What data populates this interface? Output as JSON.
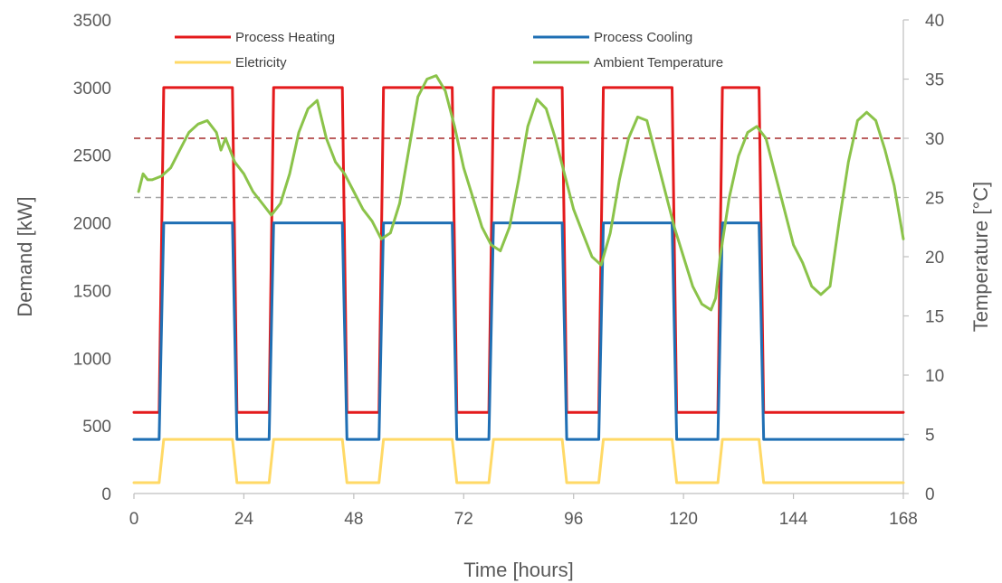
{
  "chart_data": {
    "type": "line",
    "xlabel": "Time [hours]",
    "ylabel": "Demand [kW]",
    "y2label": "Temperature [°C]",
    "xlim": [
      0,
      168
    ],
    "ylim": [
      0,
      3500
    ],
    "y2lim": [
      0,
      40
    ],
    "xticks": [
      0,
      24,
      48,
      72,
      96,
      120,
      144,
      168
    ],
    "yticks": [
      0,
      500,
      1000,
      1500,
      2000,
      2500,
      3000,
      3500
    ],
    "y2ticks": [
      0,
      5,
      10,
      15,
      20,
      25,
      30,
      35,
      40
    ],
    "grid": false,
    "legend_position": "top",
    "reference_lines": [
      {
        "axis": "y2",
        "value": 30,
        "color": "#a52a2a",
        "style": "dashed"
      },
      {
        "axis": "y2",
        "value": 25,
        "color": "#a6a6a6",
        "style": "dashed"
      }
    ],
    "series": [
      {
        "name": "Process Heating",
        "axis": "y",
        "color": "#e41a1c",
        "x": [
          0,
          5.5,
          6.5,
          21.5,
          22.5,
          29.5,
          30.5,
          45.5,
          46.5,
          53.5,
          54.5,
          69.5,
          70.5,
          77.5,
          78.5,
          93.5,
          94.5,
          101.5,
          102.5,
          117.5,
          118.5,
          127.5,
          128.5,
          136.5,
          137.5,
          168
        ],
        "values": [
          600,
          600,
          3000,
          3000,
          600,
          600,
          3000,
          3000,
          600,
          600,
          3000,
          3000,
          600,
          600,
          3000,
          3000,
          600,
          600,
          3000,
          3000,
          600,
          600,
          3000,
          3000,
          600,
          600
        ]
      },
      {
        "name": "Process Cooling",
        "axis": "y",
        "color": "#1f6fb4",
        "x": [
          0,
          5.5,
          6.5,
          21.5,
          22.5,
          29.5,
          30.5,
          45.5,
          46.5,
          53.5,
          54.5,
          69.5,
          70.5,
          77.5,
          78.5,
          93.5,
          94.5,
          101.5,
          102.5,
          117.5,
          118.5,
          127.5,
          128.5,
          136.5,
          137.5,
          168
        ],
        "values": [
          400,
          400,
          2000,
          2000,
          400,
          400,
          2000,
          2000,
          400,
          400,
          2000,
          2000,
          400,
          400,
          2000,
          2000,
          400,
          400,
          2000,
          2000,
          400,
          400,
          2000,
          2000,
          400,
          400
        ]
      },
      {
        "name": "Eletricity",
        "axis": "y",
        "color": "#ffd966",
        "x": [
          0,
          5.5,
          6.5,
          21.5,
          22.5,
          29.5,
          30.5,
          45.5,
          46.5,
          53.5,
          54.5,
          69.5,
          70.5,
          77.5,
          78.5,
          93.5,
          94.5,
          101.5,
          102.5,
          117.5,
          118.5,
          127.5,
          128.5,
          136.5,
          137.5,
          168
        ],
        "values": [
          80,
          80,
          400,
          400,
          80,
          80,
          400,
          400,
          80,
          80,
          400,
          400,
          80,
          80,
          400,
          400,
          80,
          80,
          400,
          400,
          80,
          80,
          400,
          400,
          80,
          80
        ]
      },
      {
        "name": "Ambient Temperature",
        "axis": "y2",
        "color": "#8bc34a",
        "x": [
          1,
          2,
          3,
          4,
          6,
          8,
          10,
          12,
          14,
          16,
          18,
          19,
          20,
          22,
          24,
          26,
          28,
          30,
          32,
          34,
          36,
          38,
          40,
          42,
          44,
          46,
          48,
          50,
          52,
          54,
          56,
          58,
          60,
          62,
          64,
          66,
          68,
          70,
          72,
          74,
          76,
          78,
          80,
          82,
          84,
          86,
          88,
          90,
          92,
          94,
          96,
          98,
          100,
          102,
          104,
          106,
          108,
          110,
          112,
          114,
          116,
          118,
          120,
          122,
          124,
          126,
          127,
          128,
          130,
          132,
          134,
          136,
          138,
          140,
          142,
          144,
          146,
          148,
          150,
          152,
          154,
          156,
          158,
          160,
          162,
          164,
          166,
          168
        ],
        "values": [
          25.5,
          27,
          26.5,
          26.5,
          26.8,
          27.5,
          29,
          30.5,
          31.2,
          31.5,
          30.5,
          29,
          30,
          28,
          27,
          25.5,
          24.5,
          23.5,
          24.5,
          27,
          30.5,
          32.5,
          33.2,
          30,
          28,
          27,
          25.5,
          24,
          23,
          21.5,
          22,
          24.5,
          29,
          33.5,
          35,
          35.3,
          34,
          31,
          27.5,
          25,
          22.5,
          21,
          20.5,
          22.5,
          26.5,
          31,
          33.3,
          32.5,
          30,
          27,
          24,
          22,
          20,
          19.3,
          22,
          26.5,
          30,
          31.8,
          31.5,
          28.5,
          25.5,
          22.5,
          20,
          17.5,
          16,
          15.5,
          16.5,
          20,
          25,
          28.5,
          30.5,
          31,
          30,
          27,
          24,
          21,
          19.5,
          17.5,
          16.8,
          17.5,
          23,
          28,
          31.5,
          32.2,
          31.5,
          29,
          26,
          21.5
        ]
      }
    ]
  }
}
